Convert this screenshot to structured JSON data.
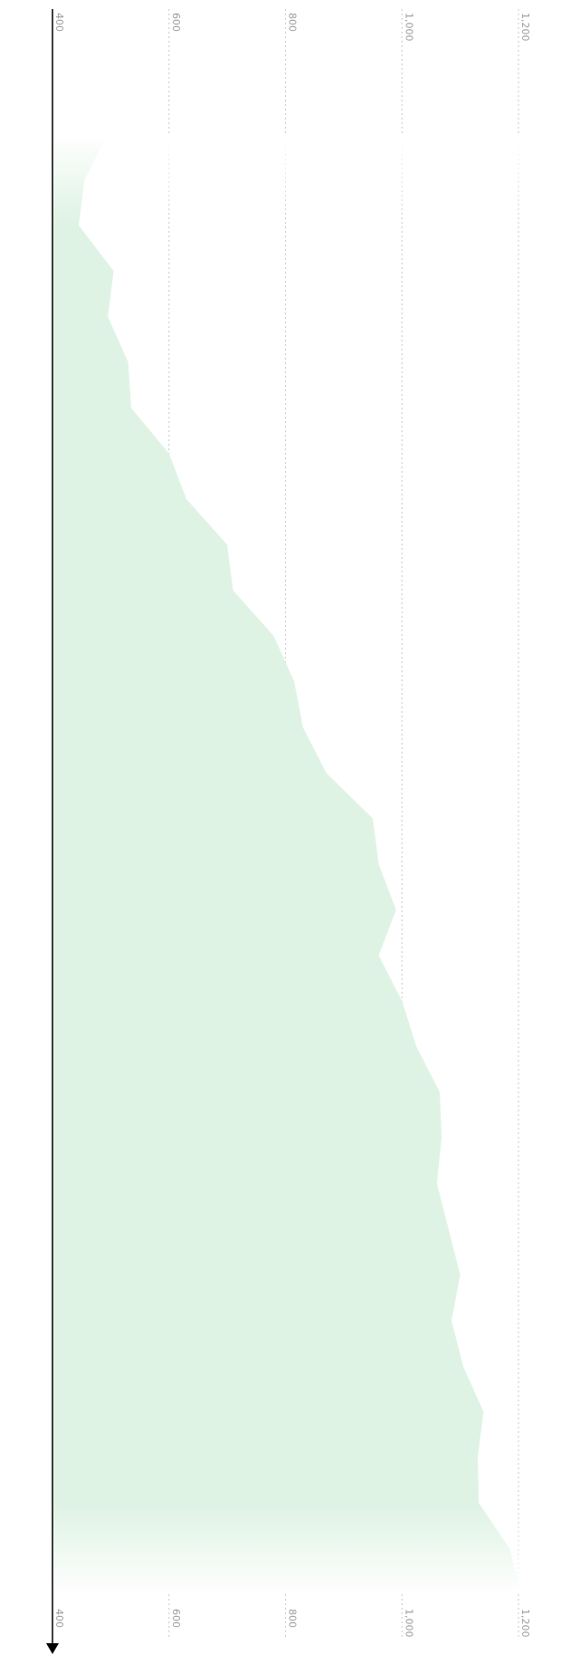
{
  "chart_data": {
    "type": "area",
    "orientation": "rotated-90",
    "title": "",
    "xlabel": "",
    "ylabel": "",
    "value_axis": {
      "range": [
        400,
        1200
      ],
      "ticks": [
        400,
        600,
        800,
        1000,
        1200
      ],
      "tick_labels": [
        "400",
        "600",
        "800",
        "1,000",
        "1,200"
      ],
      "tick_labels_at": [
        "top",
        "bottom"
      ],
      "grid": true,
      "grid_style": "dotted"
    },
    "series": [
      {
        "values": [
          495,
          455,
          445,
          505,
          495,
          530,
          535,
          600,
          630,
          700,
          710,
          780,
          815,
          830,
          870,
          950,
          960,
          990,
          960,
          1000,
          1025,
          1065,
          1068,
          1060,
          1080,
          1100,
          1085,
          1105,
          1140,
          1130,
          1132,
          1185,
          1205
        ]
      }
    ],
    "fill_color": "#dff3e4",
    "axis_color": "#000000",
    "grid_color": "#c8c8c8",
    "fade_edges": true
  }
}
